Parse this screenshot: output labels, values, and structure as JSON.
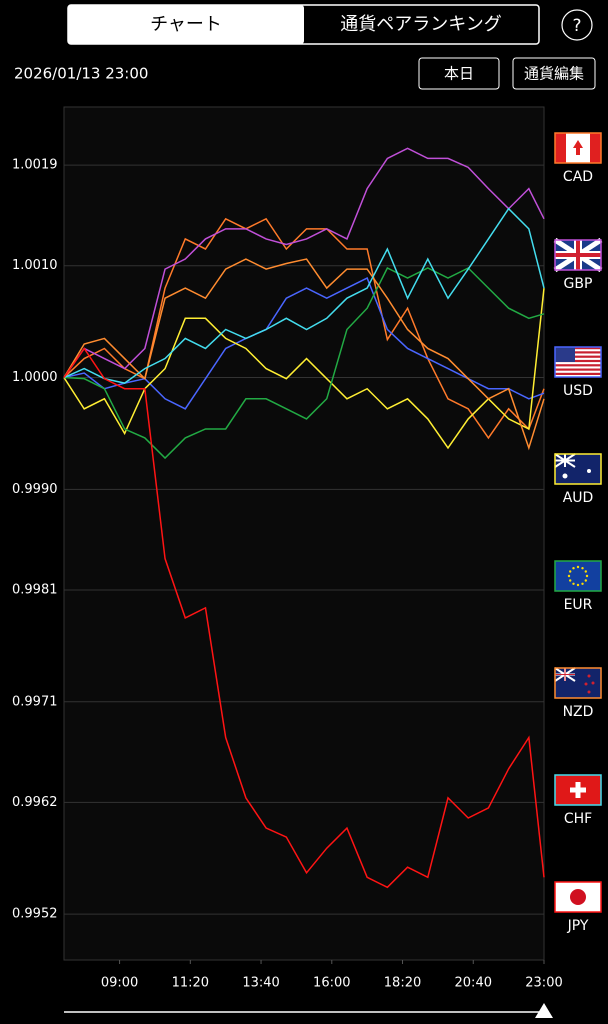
{
  "tabs": [
    "チャート",
    "通貨ペアランキング"
  ],
  "help": "?",
  "datetime": "2026/01/13 23:00",
  "buttons": [
    "本日",
    "通貨編集"
  ],
  "chart_data": {
    "type": "line",
    "x": [
      430,
      470,
      510,
      550,
      590,
      630,
      670,
      710,
      750,
      790,
      830,
      870,
      910,
      950,
      990,
      1030,
      1070,
      1110,
      1150,
      1190,
      1230,
      1270,
      1310,
      1350,
      1380
    ],
    "xlim": [
      430,
      1380
    ],
    "xticks": [
      {
        "value": 540,
        "label": "09:00"
      },
      {
        "value": 680,
        "label": "11:20"
      },
      {
        "value": 820,
        "label": "13:40"
      },
      {
        "value": 960,
        "label": "16:00"
      },
      {
        "value": 1100,
        "label": "18:20"
      },
      {
        "value": 1240,
        "label": "20:40"
      },
      {
        "value": 1380,
        "label": "23:00"
      }
    ],
    "ylim": [
      0.99479,
      1.00242
    ],
    "yticks": [
      1.0019,
      1.001,
      1,
      0.999,
      0.9981,
      0.9971,
      0.9962,
      0.9952
    ],
    "ytick_labels": [
      "1.0019",
      "1.0010",
      "1.0000",
      "0.9990",
      "0.9981",
      "0.9971",
      "0.9962",
      "0.9952"
    ],
    "grid": true,
    "series": [
      {
        "name": "CAD",
        "color": "#ff7a2a",
        "values": [
          1,
          1.00017,
          1.00026,
          1.00008,
          0.99999,
          1.0008,
          1.00124,
          1.00115,
          1.00142,
          1.00133,
          1.00142,
          1.00115,
          1.00133,
          1.00133,
          1.00115,
          1.00115,
          1.00034,
          1.00062,
          1.00017,
          0.99981,
          0.99972,
          0.99946,
          0.99972,
          0.99954,
          0.9999
        ]
      },
      {
        "name": "GBP",
        "color": "#c050d8",
        "values": [
          1,
          1.00026,
          1.00017,
          1.00008,
          1.00026,
          1.00097,
          1.00106,
          1.00124,
          1.00133,
          1.00133,
          1.00124,
          1.00119,
          1.00124,
          1.00133,
          1.00124,
          1.00169,
          1.00196,
          1.00205,
          1.00196,
          1.00196,
          1.00188,
          1.00169,
          1.00151,
          1.00169,
          1.00142
        ]
      },
      {
        "name": "USD",
        "color": "#4a66ff",
        "values": [
          1,
          1.00004,
          0.9999,
          0.99995,
          0.99999,
          0.99981,
          0.99972,
          0.99999,
          1.00026,
          1.00035,
          1.00043,
          1.00071,
          1.0008,
          1.00071,
          1.0008,
          1.00089,
          1.00043,
          1.00026,
          1.00017,
          1.00008,
          0.99999,
          0.9999,
          0.9999,
          0.99981,
          0.99986
        ]
      },
      {
        "name": "AUD",
        "color": "#ffee33",
        "values": [
          1,
          0.99972,
          0.99981,
          0.9995,
          0.9999,
          1.00008,
          1.00053,
          1.00053,
          1.00035,
          1.00026,
          1.00008,
          0.99999,
          1.00017,
          0.99999,
          0.99981,
          0.9999,
          0.99972,
          0.99981,
          0.99963,
          0.99937,
          0.99963,
          0.99981,
          0.99963,
          0.99954,
          1.0008
        ]
      },
      {
        "name": "EUR",
        "color": "#22aa44",
        "values": [
          1,
          0.99999,
          0.9999,
          0.99954,
          0.99946,
          0.99928,
          0.99946,
          0.99954,
          0.99954,
          0.99981,
          0.99981,
          0.99972,
          0.99963,
          0.99981,
          1.00043,
          1.00062,
          1.00098,
          1.00089,
          1.00098,
          1.00089,
          1.00098,
          1.0008,
          1.00062,
          1.00053,
          1.00057
        ]
      },
      {
        "name": "NZD",
        "color": "#ff8c30",
        "values": [
          1,
          1.0003,
          1.00035,
          1.00017,
          0.99999,
          1.00071,
          1.0008,
          1.00071,
          1.00097,
          1.00106,
          1.00097,
          1.00102,
          1.00106,
          1.0008,
          1.00097,
          1.00097,
          1.00071,
          1.00043,
          1.00026,
          1.00017,
          0.99999,
          0.99981,
          0.9999,
          0.99937,
          0.99981
        ]
      },
      {
        "name": "CHF",
        "color": "#44ddee",
        "values": [
          1,
          1.00008,
          0.99999,
          0.99995,
          1.00008,
          1.00017,
          1.00035,
          1.00026,
          1.00043,
          1.00035,
          1.00043,
          1.00053,
          1.00043,
          1.00053,
          1.00071,
          1.0008,
          1.00115,
          1.00071,
          1.00106,
          1.00071,
          1.00097,
          1.00124,
          1.00151,
          1.00133,
          1.0008
        ]
      },
      {
        "name": "JPY",
        "color": "#ff1414",
        "values": [
          1,
          1.00026,
          0.99999,
          0.9999,
          0.9999,
          0.99838,
          0.99785,
          0.99794,
          0.99678,
          0.99624,
          0.99597,
          0.99589,
          0.99557,
          0.99579,
          0.99597,
          0.99553,
          0.99544,
          0.99562,
          0.99553,
          0.99624,
          0.99606,
          0.99615,
          0.9965,
          0.99678,
          0.99553
        ]
      }
    ]
  }
}
